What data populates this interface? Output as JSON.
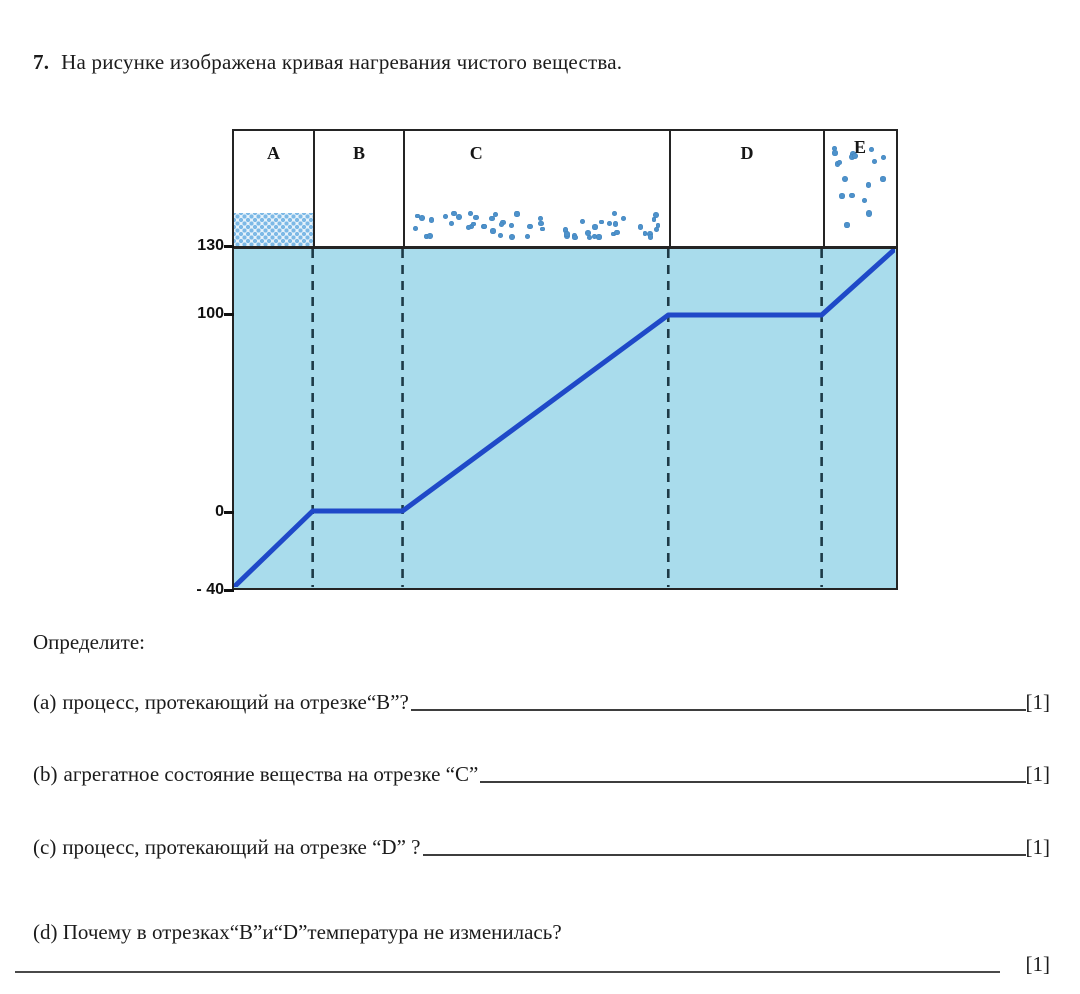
{
  "title": {
    "number": "7.",
    "text": "На рисунке изображена кривая нагревания чистого вещества."
  },
  "chart_data": {
    "type": "line",
    "title": "Кривая нагревания чистого вещества",
    "xlabel": "",
    "ylabel": "",
    "ylim": [
      -40,
      130
    ],
    "grid": false,
    "y_ticks": [
      {
        "label": "130",
        "value": 130
      },
      {
        "label": "100",
        "value": 100
      },
      {
        "label": "0",
        "value": 0
      },
      {
        "label": "- 40",
        "value": -40
      }
    ],
    "segments": [
      {
        "label": "A",
        "temp_range": [
          -40,
          0
        ],
        "particle_view": "packed-solid"
      },
      {
        "label": "B",
        "temp_range": [
          0,
          0
        ],
        "particle_view": "empty"
      },
      {
        "label": "C",
        "temp_range": [
          0,
          100
        ],
        "particle_view": "scattered-liquid"
      },
      {
        "label": "D",
        "temp_range": [
          100,
          100
        ],
        "particle_view": "empty"
      },
      {
        "label": "E",
        "temp_range": [
          100,
          130
        ],
        "particle_view": "sparse-gas"
      }
    ],
    "curve": {
      "temps": [
        -40,
        0,
        0,
        100,
        100,
        130
      ],
      "x_frac": [
        0,
        0.119,
        0.255,
        0.657,
        0.889,
        1
      ]
    },
    "boundaries_frac": [
      0.119,
      0.255,
      0.657,
      0.889
    ],
    "colors": {
      "plot_fill": "#a9dcec",
      "curve": "#1f49c8",
      "dashed_line": "#1d3a47",
      "particle": "#4e92cb",
      "border": "#242424"
    }
  },
  "questions": {
    "intro": "Определите:",
    "items": [
      {
        "id": "(a)",
        "text": "процесс, протекающий на отрезке“B”?",
        "marks": "[1]"
      },
      {
        "id": "(b)",
        "text": "агрегатное состояние вещества на отрезке “C”",
        "marks": "[1]"
      },
      {
        "id": "(c)",
        "text": "процесс, протекающий на отрезке “D” ?",
        "marks": "[1]"
      },
      {
        "id": "(d)",
        "text": "Почему в отрезках“B”и“D”температура не изменилась?",
        "marks": "[1]"
      }
    ]
  }
}
